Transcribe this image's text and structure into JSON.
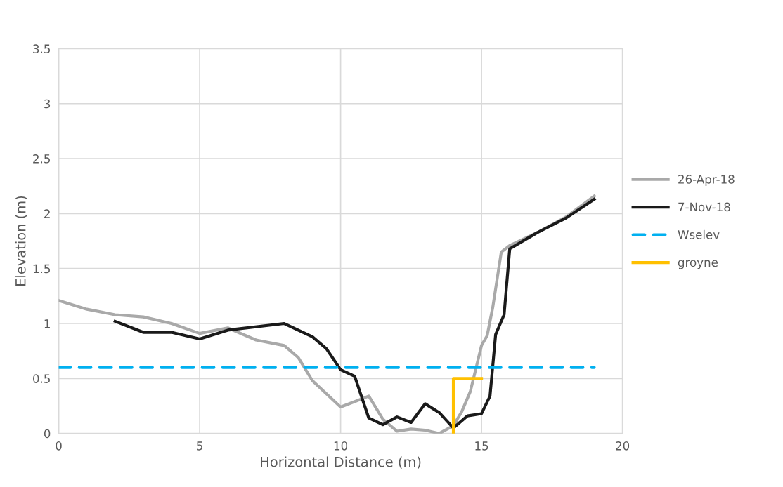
{
  "chart_data": {
    "type": "line",
    "xlabel": "Horizontal Distance (m)",
    "ylabel": "Elevation (m)",
    "xlim": [
      0,
      20
    ],
    "xticks": [
      0,
      5,
      10,
      15,
      20
    ],
    "ylim": [
      0,
      3.5
    ],
    "yticks": [
      0,
      0.5,
      1,
      1.5,
      2,
      2.5,
      3,
      3.5
    ],
    "grid": true,
    "legend": "right",
    "marker": "none",
    "series": [
      {
        "name": "26-Apr-18",
        "color": "#a9a9a9",
        "line_style": "solid",
        "x": [
          0,
          1,
          2,
          3,
          4,
          5,
          6,
          7,
          8,
          8.5,
          9,
          10,
          11,
          11.5,
          12,
          12.5,
          13,
          13.5,
          14,
          14.3,
          14.6,
          15,
          15.2,
          15.4,
          15.7,
          16,
          17,
          18,
          19
        ],
        "values": [
          1.21,
          1.13,
          1.08,
          1.06,
          1.0,
          0.91,
          0.96,
          0.85,
          0.8,
          0.69,
          0.48,
          0.24,
          0.34,
          0.13,
          0.02,
          0.04,
          0.03,
          0.0,
          0.07,
          0.2,
          0.38,
          0.8,
          0.89,
          1.15,
          1.65,
          1.71,
          1.83,
          1.97,
          2.16
        ]
      },
      {
        "name": "7-Nov-18",
        "color": "#1a1a1a",
        "line_style": "solid",
        "x": [
          2,
          3,
          4,
          5,
          6,
          8,
          9,
          9.5,
          10,
          10.5,
          11,
          11.5,
          12,
          12.5,
          13,
          13.5,
          14,
          14.5,
          15,
          15.3,
          15.5,
          15.8,
          16,
          17,
          18,
          19
        ],
        "values": [
          1.02,
          0.92,
          0.92,
          0.86,
          0.94,
          1.0,
          0.88,
          0.77,
          0.58,
          0.52,
          0.14,
          0.08,
          0.15,
          0.1,
          0.27,
          0.19,
          0.05,
          0.16,
          0.18,
          0.34,
          0.9,
          1.08,
          1.68,
          1.83,
          1.96,
          2.13
        ]
      },
      {
        "name": "Wselev",
        "color": "#00b0f0",
        "line_style": "dashed",
        "x": [
          0,
          19
        ],
        "values": [
          0.6,
          0.6
        ]
      },
      {
        "name": "groyne",
        "color": "#ffc000",
        "line_style": "solid",
        "x": [
          14,
          14,
          15
        ],
        "values": [
          0,
          0.5,
          0.5
        ]
      }
    ]
  }
}
